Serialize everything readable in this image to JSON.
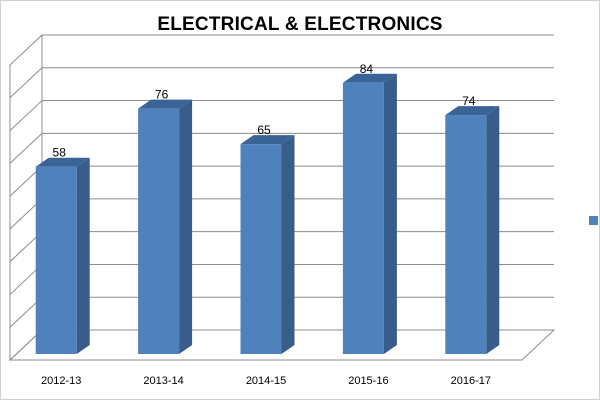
{
  "chart_data": {
    "type": "bar",
    "title": "ELECTRICAL & ELECTRONICS",
    "categories": [
      "2012-13",
      "2013-14",
      "2014-15",
      "2015-16",
      "2016-17"
    ],
    "series": [
      {
        "values": [
          58,
          76,
          65,
          84,
          74
        ]
      }
    ],
    "data_labels": [
      "58",
      "76",
      "65",
      "84",
      "74"
    ],
    "ylim": [
      0,
      90
    ],
    "grid": true,
    "three_d": true,
    "legend_position": "right",
    "colors": {
      "bar_front": "#4f81bd",
      "bar_side": "#385d8a",
      "bar_top": "#3a6396",
      "grid": "#8c8c8c",
      "wall": "#ffffff"
    }
  }
}
